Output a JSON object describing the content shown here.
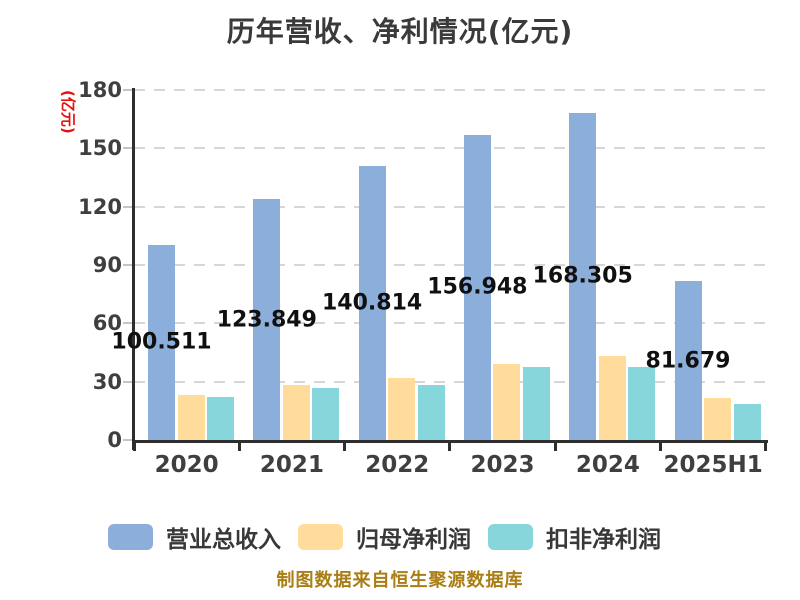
{
  "title": "历年营收、净利情况(亿元)",
  "y_axis": {
    "unit_label": "(亿元)",
    "ticks": [
      "0",
      "30",
      "60",
      "90",
      "120",
      "150",
      "180"
    ]
  },
  "caption": "制图数据来自恒生聚源数据库",
  "chart_data": {
    "type": "bar",
    "title": "历年营收、净利情况(亿元)",
    "categories": [
      "2020",
      "2021",
      "2022",
      "2023",
      "2024",
      "2025H1"
    ],
    "series": [
      {
        "name": "营业总收入",
        "color": "#8CAEDB",
        "values": [
          100.511,
          123.849,
          140.814,
          156.948,
          168.305,
          81.679
        ],
        "labels": [
          "100.511",
          "123.849",
          "140.814",
          "156.948",
          "168.305",
          "81.679"
        ]
      },
      {
        "name": "归母净利润",
        "color": "#FFDB9C",
        "values": [
          23.1,
          28.3,
          32.0,
          39.2,
          43.2,
          21.4
        ]
      },
      {
        "name": "扣非净利润",
        "color": "#86D6DB",
        "values": [
          22.0,
          26.7,
          28.5,
          37.7,
          37.7,
          18.4
        ]
      }
    ],
    "ylim": [
      0,
      180
    ],
    "y_tick_step": 30,
    "grid": "dashed-horizontal",
    "legend_position": "bottom",
    "value_labels_shown_for": "营业总收入"
  },
  "colors": {
    "bar_blue": "#8CAEDB",
    "bar_orange": "#FFDB9C",
    "bar_teal": "#86D6DB",
    "gridline": "#d6d6d6",
    "axis": "#2e2e2e",
    "axis_text": "#3f3f3f",
    "value_label_text": "#101010",
    "title_text": "#3a3a3a",
    "caption_gold": "#a97e14",
    "unit_red": "#ea0e0e"
  }
}
